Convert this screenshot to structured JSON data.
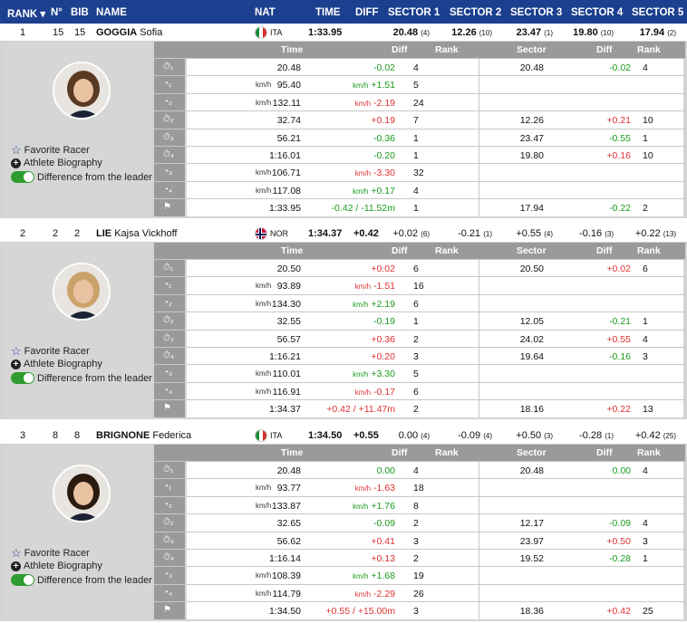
{
  "header": {
    "rank": "RANK ▾",
    "no": "N°",
    "bib": "BIB",
    "name": "NAME",
    "nat": "NAT",
    "time": "TIME",
    "diff": "DIFF",
    "sectors": [
      "SECTOR 1",
      "SECTOR 2",
      "SECTOR 3",
      "SECTOR 4",
      "SECTOR 5"
    ]
  },
  "sidebar": {
    "favorite": "Favorite Racer",
    "biography": "Athlete Biography",
    "difference": "Difference from the leader"
  },
  "table_header": {
    "time": "Time",
    "diff": "Diff",
    "rank": "Rank",
    "sector": "Sector",
    "sdiff": "Diff",
    "srank": "Rank"
  },
  "row_icons": [
    "⏱₁",
    "◔₁",
    "◔₂",
    "⏱₂",
    "⏱₃",
    "⏱₄",
    "◔₃",
    "◔₄",
    "⚑"
  ],
  "racers": [
    {
      "rank": "1",
      "no": "15",
      "bib": "15",
      "surname": "GOGGIA",
      "firstname": "Sofia",
      "nat": "ITA",
      "time": "1:33.95",
      "diff": "",
      "sectors": [
        {
          "v": "20.48",
          "r": "(4)"
        },
        {
          "v": "12.26",
          "r": "(10)"
        },
        {
          "v": "23.47",
          "r": "(1)"
        },
        {
          "v": "19.80",
          "r": "(10)"
        },
        {
          "v": "17.94",
          "r": "(2)"
        }
      ],
      "rows": [
        {
          "unit": "",
          "time": "20.48",
          "diff": "-0.02",
          "dc": "green",
          "rank": "4",
          "sector": "20.48",
          "sdiff": "-0.02",
          "sc": "green",
          "srank": "4"
        },
        {
          "unit": "km/h",
          "time": "95.40",
          "diff": "+1.51",
          "dunit": "km/h",
          "dc": "green",
          "rank": "5",
          "sector": "",
          "sdiff": "",
          "sc": "",
          "srank": ""
        },
        {
          "unit": "km/h",
          "time": "132.11",
          "diff": "-2.19",
          "dunit": "km/h",
          "dc": "red",
          "rank": "24",
          "sector": "",
          "sdiff": "",
          "sc": "",
          "srank": ""
        },
        {
          "unit": "",
          "time": "32.74",
          "diff": "+0.19",
          "dc": "red",
          "rank": "7",
          "sector": "12.26",
          "sdiff": "+0.21",
          "sc": "red",
          "srank": "10"
        },
        {
          "unit": "",
          "time": "56.21",
          "diff": "-0.36",
          "dc": "green",
          "rank": "1",
          "sector": "23.47",
          "sdiff": "-0.55",
          "sc": "green",
          "srank": "1"
        },
        {
          "unit": "",
          "time": "1:16.01",
          "diff": "-0.20",
          "dc": "green",
          "rank": "1",
          "sector": "19.80",
          "sdiff": "+0.16",
          "sc": "red",
          "srank": "10"
        },
        {
          "unit": "km/h",
          "time": "106.71",
          "diff": "-3.30",
          "dunit": "km/h",
          "dc": "red",
          "rank": "32",
          "sector": "",
          "sdiff": "",
          "sc": "",
          "srank": ""
        },
        {
          "unit": "km/h",
          "time": "117.08",
          "diff": "+0.17",
          "dunit": "km/h",
          "dc": "green",
          "rank": "4",
          "sector": "",
          "sdiff": "",
          "sc": "",
          "srank": ""
        },
        {
          "unit": "",
          "time": "1:33.95",
          "diff": "-0.42 / -11.52m",
          "dc": "green",
          "rank": "1",
          "sector": "17.94",
          "sdiff": "-0.22",
          "sc": "green",
          "srank": "2"
        }
      ]
    },
    {
      "rank": "2",
      "no": "2",
      "bib": "2",
      "surname": "LIE",
      "firstname": "Kajsa Vickhoff",
      "nat": "NOR",
      "time": "1:34.37",
      "diff": "+0.42",
      "sectors": [
        {
          "v": "+0.02",
          "r": "(6)"
        },
        {
          "v": "-0.21",
          "r": "(1)"
        },
        {
          "v": "+0.55",
          "r": "(4)"
        },
        {
          "v": "-0.16",
          "r": "(3)"
        },
        {
          "v": "+0.22",
          "r": "(13)"
        }
      ],
      "rows": [
        {
          "unit": "",
          "time": "20.50",
          "diff": "+0.02",
          "dc": "red",
          "rank": "6",
          "sector": "20.50",
          "sdiff": "+0.02",
          "sc": "red",
          "srank": "6"
        },
        {
          "unit": "km/h",
          "time": "93.89",
          "diff": "-1.51",
          "dunit": "km/h",
          "dc": "red",
          "rank": "16",
          "sector": "",
          "sdiff": "",
          "sc": "",
          "srank": ""
        },
        {
          "unit": "km/h",
          "time": "134.30",
          "diff": "+2.19",
          "dunit": "km/h",
          "dc": "green",
          "rank": "6",
          "sector": "",
          "sdiff": "",
          "sc": "",
          "srank": ""
        },
        {
          "unit": "",
          "time": "32.55",
          "diff": "-0.19",
          "dc": "green",
          "rank": "1",
          "sector": "12.05",
          "sdiff": "-0.21",
          "sc": "green",
          "srank": "1"
        },
        {
          "unit": "",
          "time": "56.57",
          "diff": "+0.36",
          "dc": "red",
          "rank": "2",
          "sector": "24.02",
          "sdiff": "+0.55",
          "sc": "red",
          "srank": "4"
        },
        {
          "unit": "",
          "time": "1:16.21",
          "diff": "+0.20",
          "dc": "red",
          "rank": "3",
          "sector": "19.64",
          "sdiff": "-0.16",
          "sc": "green",
          "srank": "3"
        },
        {
          "unit": "km/h",
          "time": "110.01",
          "diff": "+3.30",
          "dunit": "km/h",
          "dc": "green",
          "rank": "5",
          "sector": "",
          "sdiff": "",
          "sc": "",
          "srank": ""
        },
        {
          "unit": "km/h",
          "time": "116.91",
          "diff": "-0.17",
          "dunit": "km/h",
          "dc": "red",
          "rank": "6",
          "sector": "",
          "sdiff": "",
          "sc": "",
          "srank": ""
        },
        {
          "unit": "",
          "time": "1:34.37",
          "diff": "+0.42 / +11.47m",
          "dc": "red",
          "rank": "2",
          "sector": "18.16",
          "sdiff": "+0.22",
          "sc": "red",
          "srank": "13"
        }
      ]
    },
    {
      "rank": "3",
      "no": "8",
      "bib": "8",
      "surname": "BRIGNONE",
      "firstname": "Federica",
      "nat": "ITA",
      "time": "1:34.50",
      "diff": "+0.55",
      "sectors": [
        {
          "v": "0.00",
          "r": "(4)"
        },
        {
          "v": "-0.09",
          "r": "(4)"
        },
        {
          "v": "+0.50",
          "r": "(3)"
        },
        {
          "v": "-0.28",
          "r": "(1)"
        },
        {
          "v": "+0.42",
          "r": "(25)"
        }
      ],
      "rows": [
        {
          "unit": "",
          "time": "20.48",
          "diff": "0.00",
          "dc": "green",
          "rank": "4",
          "sector": "20.48",
          "sdiff": "0.00",
          "sc": "green",
          "srank": "4"
        },
        {
          "unit": "km/h",
          "time": "93.77",
          "diff": "-1.63",
          "dunit": "km/h",
          "dc": "red",
          "rank": "18",
          "sector": "",
          "sdiff": "",
          "sc": "",
          "srank": ""
        },
        {
          "unit": "km/h",
          "time": "133.87",
          "diff": "+1.76",
          "dunit": "km/h",
          "dc": "green",
          "rank": "8",
          "sector": "",
          "sdiff": "",
          "sc": "",
          "srank": ""
        },
        {
          "unit": "",
          "time": "32.65",
          "diff": "-0.09",
          "dc": "green",
          "rank": "2",
          "sector": "12.17",
          "sdiff": "-0.09",
          "sc": "green",
          "srank": "4"
        },
        {
          "unit": "",
          "time": "56.62",
          "diff": "+0.41",
          "dc": "red",
          "rank": "3",
          "sector": "23.97",
          "sdiff": "+0.50",
          "sc": "red",
          "srank": "3"
        },
        {
          "unit": "",
          "time": "1:16.14",
          "diff": "+0.13",
          "dc": "red",
          "rank": "2",
          "sector": "19.52",
          "sdiff": "-0.28",
          "sc": "green",
          "srank": "1"
        },
        {
          "unit": "km/h",
          "time": "108.39",
          "diff": "+1.68",
          "dunit": "km/h",
          "dc": "green",
          "rank": "19",
          "sector": "",
          "sdiff": "",
          "sc": "",
          "srank": ""
        },
        {
          "unit": "km/h",
          "time": "114.79",
          "diff": "-2.29",
          "dunit": "km/h",
          "dc": "red",
          "rank": "26",
          "sector": "",
          "sdiff": "",
          "sc": "",
          "srank": ""
        },
        {
          "unit": "",
          "time": "1:34.50",
          "diff": "+0.55 / +15.00m",
          "dc": "red",
          "rank": "3",
          "sector": "18.36",
          "sdiff": "+0.42",
          "sc": "red",
          "srank": "25"
        }
      ]
    }
  ],
  "colors": {
    "header": "#1c3f8f",
    "green": "#1a9a1a",
    "red": "#e03030",
    "panel": "#d4d4d4",
    "subheader": "#9a9a9a"
  }
}
